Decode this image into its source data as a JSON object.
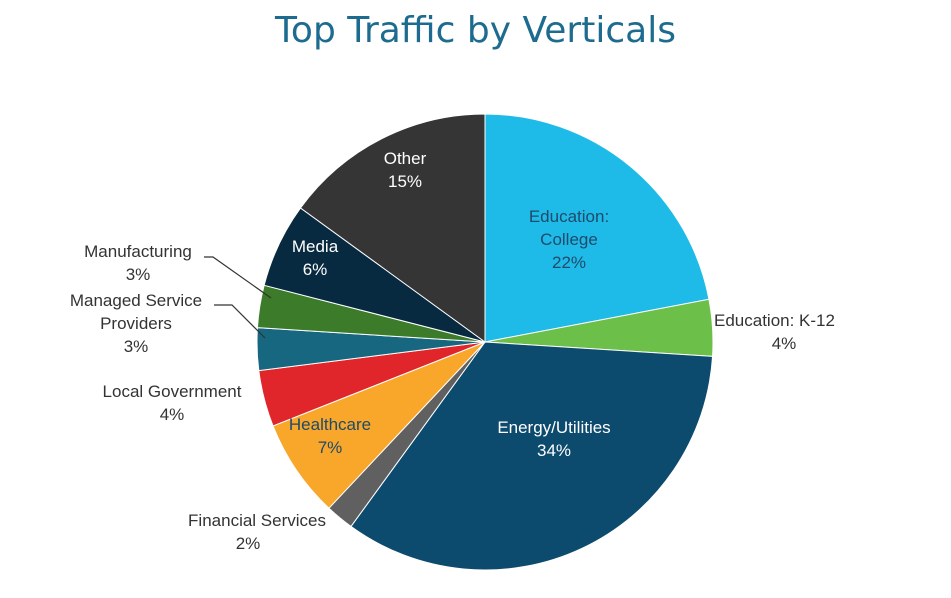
{
  "chart_data": {
    "type": "pie",
    "title": "Top Traffic by Verticals",
    "slices": [
      {
        "label": [
          "Education:",
          "College"
        ],
        "value_label": "22%",
        "value": 22,
        "color": "#1fbbe8",
        "text_color": "#1e4a6b"
      },
      {
        "label": [
          "Education: K-12"
        ],
        "value_label": "4%",
        "value": 4,
        "color": "#6cc04a",
        "text_color": "#333333"
      },
      {
        "label": [
          "Energy/Utilities"
        ],
        "value_label": "34%",
        "value": 34,
        "color": "#0c4a6e",
        "text_color": "#ffffff"
      },
      {
        "label": [
          "Financial Services"
        ],
        "value_label": "2%",
        "value": 2,
        "color": "#606060",
        "text_color": "#333333"
      },
      {
        "label": [
          "Healthcare"
        ],
        "value_label": "7%",
        "value": 7,
        "color": "#f9a72b",
        "text_color": "#1e4a6b"
      },
      {
        "label": [
          "Local Government"
        ],
        "value_label": "4%",
        "value": 4,
        "color": "#e0262b",
        "text_color": "#333333"
      },
      {
        "label": [
          "Managed Service",
          "Providers"
        ],
        "value_label": "3%",
        "value": 3,
        "color": "#16677f",
        "text_color": "#333333"
      },
      {
        "label": [
          "Manufacturing"
        ],
        "value_label": "3%",
        "value": 3,
        "color": "#3c7b2a",
        "text_color": "#333333"
      },
      {
        "label": [
          "Media"
        ],
        "value_label": "6%",
        "value": 6,
        "color": "#082a40",
        "text_color": "#ffffff"
      },
      {
        "label": [
          "Other"
        ],
        "value_label": "15%",
        "value": 15,
        "color": "#353535",
        "text_color": "#ffffff"
      }
    ]
  }
}
